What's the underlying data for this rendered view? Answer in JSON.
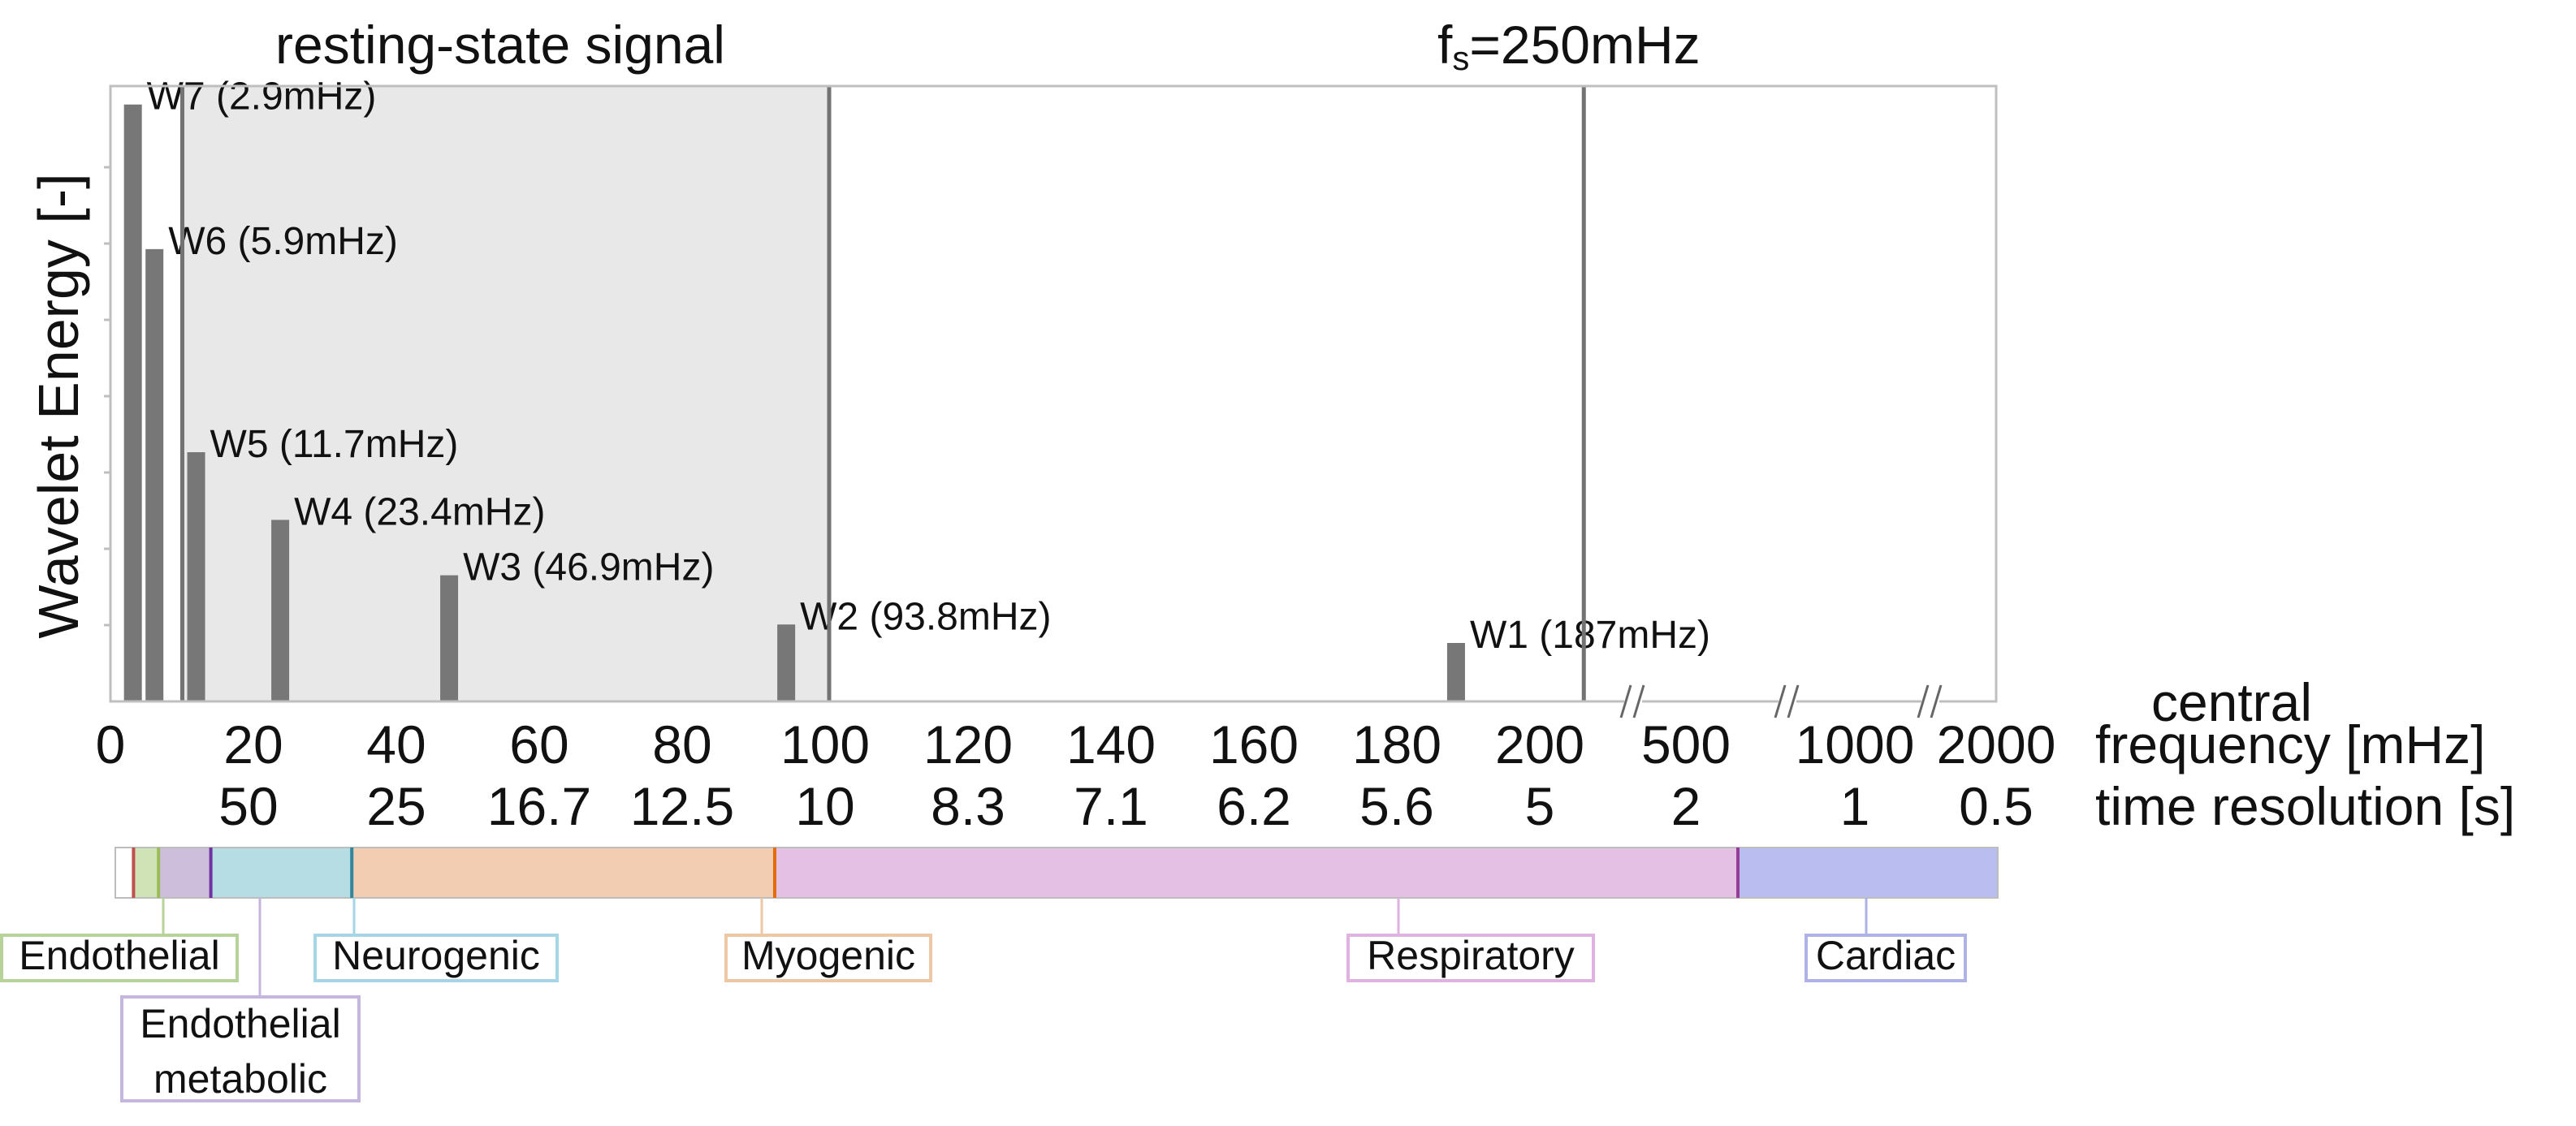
{
  "chart_data": {
    "type": "bar",
    "top_labels": {
      "region": "resting-state signal",
      "sampling_prefix": "f",
      "sampling_sub": "s",
      "sampling_value": "=250mHz"
    },
    "ylabel": "Wavelet Energy [-]",
    "xlabel_lines": [
      "central",
      "frequency [mHz]"
    ],
    "second_axis_label": "time resolution [s]",
    "x_ticks": [
      {
        "label": "0",
        "time": ""
      },
      {
        "label": "20",
        "time": "50"
      },
      {
        "label": "40",
        "time": "25"
      },
      {
        "label": "60",
        "time": "16.7"
      },
      {
        "label": "80",
        "time": "12.5"
      },
      {
        "label": "100",
        "time": "10"
      },
      {
        "label": "120",
        "time": "8.3"
      },
      {
        "label": "140",
        "time": "7.1"
      },
      {
        "label": "160",
        "time": "6.2"
      },
      {
        "label": "180",
        "time": "5.6"
      },
      {
        "label": "200",
        "time": "5"
      },
      {
        "label": "500",
        "time": "2"
      },
      {
        "label": "1000",
        "time": "1"
      },
      {
        "label": "2000",
        "time": "0.5"
      }
    ],
    "linear_xlim": [
      0,
      210
    ],
    "shaded_range": [
      10,
      100
    ],
    "vertical_lines": [
      10,
      100,
      205
    ],
    "axis_breaks": true,
    "ylim": [
      0,
      1
    ],
    "bars": [
      {
        "label": "W7 (2.9mHz)",
        "x": 2.9,
        "value": 0.97
      },
      {
        "label": "W6 (5.9mHz)",
        "x": 5.9,
        "value": 0.735
      },
      {
        "label": "W5 (11.7mHz)",
        "x": 11.7,
        "value": 0.405
      },
      {
        "label": "W4 (23.4mHz)",
        "x": 23.4,
        "value": 0.295
      },
      {
        "label": "W3 (46.9mHz)",
        "x": 46.9,
        "value": 0.205
      },
      {
        "label": "W2 (93.8mHz)",
        "x": 93.8,
        "value": 0.125
      },
      {
        "label": "W1 (187mHz)",
        "x": 187,
        "value": 0.095
      }
    ],
    "bands": [
      {
        "name": "",
        "from": 0,
        "to": 4,
        "color": "#ffffff",
        "border": "#c8c8c8"
      },
      {
        "name": "Endothelial",
        "from": 4,
        "to": 9.5,
        "color": "#cfe3b6",
        "border": "#b7d39a"
      },
      {
        "name": "Endothelial metabolic",
        "from": 9.5,
        "to": 21,
        "color": "#cdbfdc",
        "border": "#c4b6dc"
      },
      {
        "name": "Neurogenic",
        "from": 21,
        "to": 52,
        "color": "#b6dce4",
        "border": "#a5d6e6"
      },
      {
        "name": "Myogenic",
        "from": 52,
        "to": 145,
        "color": "#f3cdb2",
        "border": "#eec7a5"
      },
      {
        "name": "Respiratory",
        "from": 145,
        "to": 218,
        "color": "#e4c1e4",
        "border": "#dfb2df"
      },
      {
        "name": "Cardiac",
        "from": 218,
        "to": 263,
        "color": "#b9bdef",
        "border": "#aeb2e6"
      }
    ],
    "band_separators": [
      {
        "at": 4,
        "color": "#c0504d"
      },
      {
        "at": 9.5,
        "color": "#9bbb59"
      },
      {
        "at": 21,
        "color": "#7030a0"
      },
      {
        "at": 52,
        "color": "#31859c"
      },
      {
        "at": 145,
        "color": "#e46c0a"
      },
      {
        "at": 218,
        "color": "#953c96"
      }
    ],
    "band_label_texts": {
      "endothelial": "Endothelial",
      "endothelial_metabolic_1": "Endothelial",
      "endothelial_metabolic_2": "metabolic",
      "neurogenic": "Neurogenic",
      "myogenic": "Myogenic",
      "respiratory": "Respiratory",
      "cardiac": "Cardiac"
    },
    "colors": {
      "bar": "#777777",
      "shade": "#e8e8e8",
      "vline": "#737373",
      "axis": "#bfbfbf"
    }
  }
}
